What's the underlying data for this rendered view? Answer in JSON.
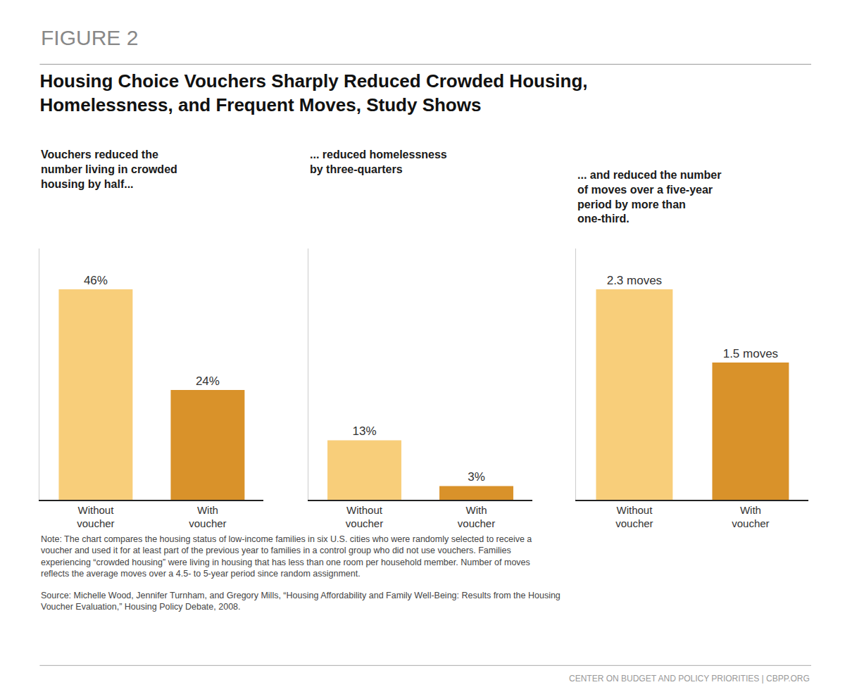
{
  "title": "Housing Choice Vouchers Sharply Reduced Crowded Housing,\nHomelessness, and Frequent Moves, Study Shows",
  "annotations": [
    "FIGURE 2",
    "Note: The chart compares the housing status of low-income families in six U.S. cities who were randomly selected to receive a\nvoucher and used it for at least part of the previous year to families in a control group who did not use vouchers. Families\nexperiencing “crowded housing” were living in housing that has less than one room per household member. Number of moves\nreflects the average moves over a 4.5- to 5-year period since random assignment.",
    "Source: Michelle Wood, Jennifer Turnham, and Gregory Mills, “Housing Affordability and Family Well-Being: Results from the Housing\nVoucher Evaluation,” Housing Policy Debate, 2008.",
    "CENTER ON BUDGET AND POLICY PRIORITIES | CBPP.ORG"
  ],
  "chart_data": [
    {
      "type": "bar",
      "subtitle": "Vouchers reduced the\nnumber living in crowded\nhousing by half...",
      "categories": [
        "Without\nvoucher",
        "With\nvoucher"
      ],
      "values": [
        46,
        24
      ],
      "value_labels": [
        "46%",
        "24%"
      ],
      "colors": [
        "#F8CE7A",
        "#D9922A"
      ],
      "ylim": [
        0,
        55
      ],
      "data_labels": true,
      "tick_labels": "x",
      "grid": false
    },
    {
      "type": "bar",
      "subtitle": "... reduced homelessness\nby three-quarters",
      "categories": [
        "Without\nvoucher",
        "With\nvoucher"
      ],
      "values": [
        13,
        3
      ],
      "value_labels": [
        "13%",
        "3%"
      ],
      "colors": [
        "#F8CE7A",
        "#D9922A"
      ],
      "ylim": [
        0,
        55
      ],
      "data_labels": true,
      "tick_labels": "x",
      "grid": false
    },
    {
      "type": "bar",
      "subtitle": "... and reduced the number\nof moves over a five-year\nperiod by more than\none-third.",
      "categories": [
        "Without\nvoucher",
        "With\nvoucher"
      ],
      "values": [
        2.3,
        1.5
      ],
      "value_labels": [
        "2.3 moves",
        "1.5 moves"
      ],
      "colors": [
        "#F8CE7A",
        "#D9922A"
      ],
      "ylim": [
        0,
        2.75
      ],
      "data_labels": true,
      "tick_labels": "x",
      "grid": false
    }
  ]
}
